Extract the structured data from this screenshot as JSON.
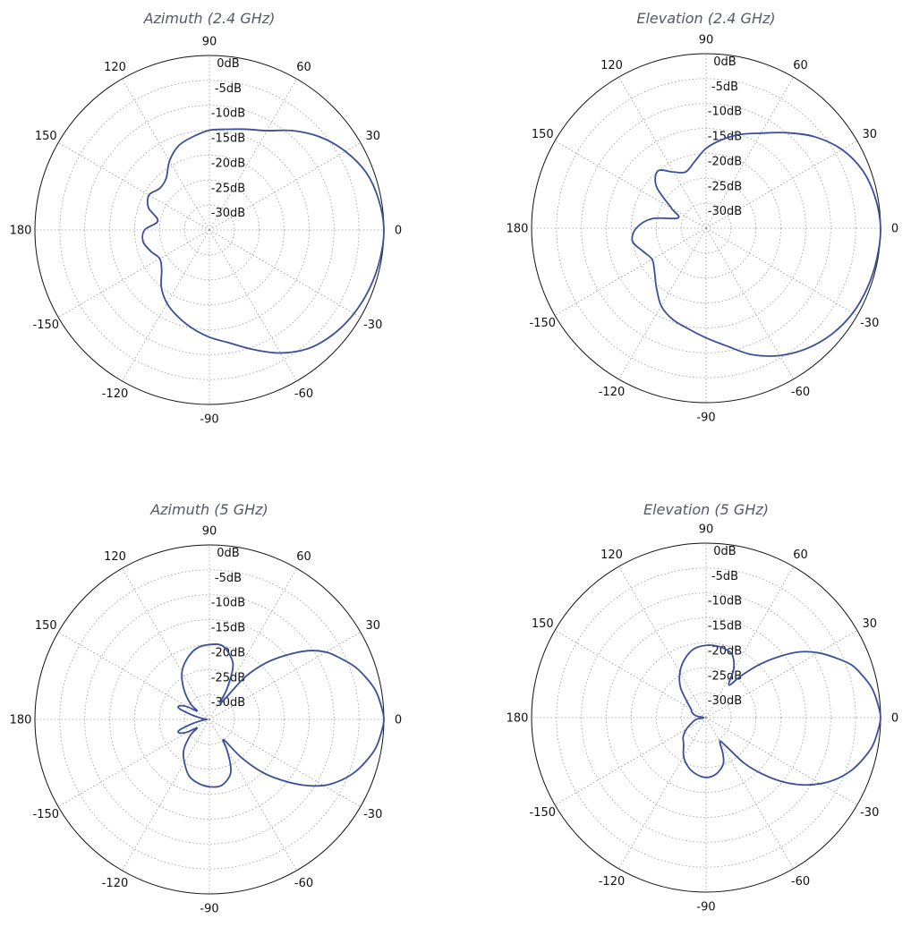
{
  "colors": {
    "trace": "#3a4e9a",
    "title": "#555a66"
  },
  "chart_data": [
    {
      "type": "polar-line",
      "title": "Azimuth (2.4 GHz)",
      "angle_ticks": [
        "0",
        "30",
        "60",
        "90",
        "120",
        "150",
        "180",
        "-150",
        "-120",
        "-90",
        "-60",
        "-30"
      ],
      "radial_ticks": [
        "0dB",
        "-5dB",
        "-10dB",
        "-15dB",
        "-20dB",
        "-25dB",
        "-30dB"
      ],
      "rlim": [
        -35,
        0
      ],
      "grid": true,
      "series": [
        {
          "values": [
            [
              0,
              0
            ],
            [
              10,
              -0.5
            ],
            [
              20,
              -1.5
            ],
            [
              30,
              -3.5
            ],
            [
              40,
              -6
            ],
            [
              50,
              -9
            ],
            [
              60,
              -12
            ],
            [
              70,
              -13.5
            ],
            [
              80,
              -14.5
            ],
            [
              90,
              -15
            ],
            [
              100,
              -16
            ],
            [
              110,
              -17
            ],
            [
              120,
              -19
            ],
            [
              130,
              -21.5
            ],
            [
              140,
              -22
            ],
            [
              150,
              -21
            ],
            [
              160,
              -22
            ],
            [
              170,
              -24.5
            ],
            [
              180,
              -22
            ],
            [
              -170,
              -21.5
            ],
            [
              -160,
              -22.5
            ],
            [
              -150,
              -23.5
            ],
            [
              -140,
              -22.5
            ],
            [
              -130,
              -20
            ],
            [
              -120,
              -18
            ],
            [
              -110,
              -16.5
            ],
            [
              -100,
              -15
            ],
            [
              -90,
              -13.5
            ],
            [
              -80,
              -12
            ],
            [
              -70,
              -9.5
            ],
            [
              -60,
              -6.5
            ],
            [
              -50,
              -4
            ],
            [
              -40,
              -2.5
            ],
            [
              -30,
              -1.5
            ],
            [
              -20,
              -0.8
            ],
            [
              -10,
              -0.3
            ],
            [
              0,
              0
            ]
          ]
        }
      ]
    },
    {
      "type": "polar-line",
      "title": "Elevation (2.4 GHz)",
      "angle_ticks": [
        "0",
        "30",
        "60",
        "90",
        "120",
        "150",
        "180",
        "-150",
        "-120",
        "-90",
        "-60",
        "-30"
      ],
      "radial_ticks": [
        "0dB",
        "-5dB",
        "-10dB",
        "-15dB",
        "-20dB",
        "-25dB",
        "-30dB"
      ],
      "rlim": [
        -35,
        0
      ],
      "grid": true,
      "series": [
        {
          "values": [
            [
              0,
              0
            ],
            [
              10,
              -0.5
            ],
            [
              20,
              -1.5
            ],
            [
              30,
              -3.5
            ],
            [
              40,
              -6.5
            ],
            [
              50,
              -10
            ],
            [
              60,
              -13
            ],
            [
              70,
              -15
            ],
            [
              80,
              -17
            ],
            [
              90,
              -19
            ],
            [
              100,
              -21.5
            ],
            [
              110,
              -23
            ],
            [
              120,
              -22
            ],
            [
              130,
              -20
            ],
            [
              140,
              -22
            ],
            [
              150,
              -27
            ],
            [
              160,
              -29
            ],
            [
              170,
              -24
            ],
            [
              180,
              -21
            ],
            [
              -170,
              -20
            ],
            [
              -160,
              -21.5
            ],
            [
              -150,
              -22.5
            ],
            [
              -140,
              -21.5
            ],
            [
              -130,
              -19.5
            ],
            [
              -120,
              -17
            ],
            [
              -110,
              -15.5
            ],
            [
              -100,
              -14.5
            ],
            [
              -90,
              -13
            ],
            [
              -80,
              -11
            ],
            [
              -70,
              -8
            ],
            [
              -60,
              -5.5
            ],
            [
              -50,
              -3.5
            ],
            [
              -40,
              -2
            ],
            [
              -30,
              -1
            ],
            [
              -20,
              -0.5
            ],
            [
              -10,
              -0.2
            ],
            [
              0,
              0
            ]
          ]
        }
      ]
    },
    {
      "type": "polar-line",
      "title": "Azimuth (5 GHz)",
      "angle_ticks": [
        "0",
        "30",
        "60",
        "90",
        "120",
        "150",
        "180",
        "-150",
        "-120",
        "-90",
        "-60",
        "-30"
      ],
      "radial_ticks": [
        "0dB",
        "-5dB",
        "-10dB",
        "-15dB",
        "-20dB",
        "-25dB",
        "-30dB"
      ],
      "rlim": [
        -35,
        0
      ],
      "grid": true,
      "series": [
        {
          "values": [
            [
              0,
              0
            ],
            [
              5,
              -0.5
            ],
            [
              10,
              -1.2
            ],
            [
              15,
              -2.5
            ],
            [
              20,
              -4
            ],
            [
              25,
              -6
            ],
            [
              30,
              -8
            ],
            [
              35,
              -11
            ],
            [
              40,
              -15
            ],
            [
              45,
              -19
            ],
            [
              50,
              -24
            ],
            [
              55,
              -31
            ],
            [
              60,
              -28
            ],
            [
              65,
              -24
            ],
            [
              70,
              -22
            ],
            [
              80,
              -20
            ],
            [
              90,
              -20
            ],
            [
              100,
              -20.5
            ],
            [
              110,
              -22
            ],
            [
              120,
              -24
            ],
            [
              130,
              -27
            ],
            [
              140,
              -30
            ],
            [
              145,
              -32
            ],
            [
              150,
              -30
            ],
            [
              155,
              -28.5
            ],
            [
              160,
              -28.5
            ],
            [
              165,
              -31
            ],
            [
              170,
              -33
            ],
            [
              175,
              -34
            ],
            [
              180,
              -34.5
            ],
            [
              -175,
              -34
            ],
            [
              -170,
              -33
            ],
            [
              -165,
              -31
            ],
            [
              -160,
              -28.5
            ],
            [
              -155,
              -28.5
            ],
            [
              -150,
              -30
            ],
            [
              -145,
              -32
            ],
            [
              -140,
              -30
            ],
            [
              -130,
              -27
            ],
            [
              -120,
              -25
            ],
            [
              -110,
              -23
            ],
            [
              -100,
              -22
            ],
            [
              -90,
              -21.5
            ],
            [
              -80,
              -21.5
            ],
            [
              -70,
              -23
            ],
            [
              -65,
              -25
            ],
            [
              -60,
              -28
            ],
            [
              -55,
              -30
            ],
            [
              -50,
              -25
            ],
            [
              -45,
              -20
            ],
            [
              -40,
              -16
            ],
            [
              -35,
              -12
            ],
            [
              -30,
              -8.5
            ],
            [
              -25,
              -6
            ],
            [
              -20,
              -4
            ],
            [
              -15,
              -2.5
            ],
            [
              -10,
              -1.2
            ],
            [
              -5,
              -0.5
            ],
            [
              0,
              0
            ]
          ]
        }
      ]
    },
    {
      "type": "polar-line",
      "title": "Elevation (5 GHz)",
      "angle_ticks": [
        "0",
        "30",
        "60",
        "90",
        "120",
        "150",
        "180",
        "-150",
        "-120",
        "-90",
        "-60",
        "-30"
      ],
      "radial_ticks": [
        "0dB",
        "-5dB",
        "-10dB",
        "-15dB",
        "-20dB",
        "-25dB",
        "-30dB"
      ],
      "rlim": [
        -35,
        0
      ],
      "grid": true,
      "series": [
        {
          "values": [
            [
              0,
              0
            ],
            [
              5,
              -0.5
            ],
            [
              10,
              -1.2
            ],
            [
              15,
              -2.5
            ],
            [
              20,
              -4
            ],
            [
              25,
              -6.5
            ],
            [
              30,
              -9
            ],
            [
              35,
              -12
            ],
            [
              40,
              -16
            ],
            [
              45,
              -20
            ],
            [
              50,
              -24
            ],
            [
              55,
              -27
            ],
            [
              60,
              -24
            ],
            [
              65,
              -22
            ],
            [
              70,
              -21
            ],
            [
              80,
              -20.5
            ],
            [
              90,
              -20.5
            ],
            [
              100,
              -21
            ],
            [
              110,
              -22.5
            ],
            [
              120,
              -24.5
            ],
            [
              130,
              -27
            ],
            [
              140,
              -30
            ],
            [
              150,
              -31.5
            ],
            [
              160,
              -32
            ],
            [
              170,
              -33
            ],
            [
              180,
              -34.5
            ],
            [
              -170,
              -33
            ],
            [
              -160,
              -32
            ],
            [
              -150,
              -30.5
            ],
            [
              -140,
              -29
            ],
            [
              -130,
              -28
            ],
            [
              -120,
              -26
            ],
            [
              -110,
              -24.5
            ],
            [
              -100,
              -23.5
            ],
            [
              -90,
              -23
            ],
            [
              -80,
              -23.5
            ],
            [
              -70,
              -25
            ],
            [
              -65,
              -27
            ],
            [
              -60,
              -29.5
            ],
            [
              -55,
              -28
            ],
            [
              -50,
              -23
            ],
            [
              -45,
              -19
            ],
            [
              -40,
              -15
            ],
            [
              -35,
              -11.5
            ],
            [
              -30,
              -8.5
            ],
            [
              -25,
              -6
            ],
            [
              -20,
              -4
            ],
            [
              -15,
              -2.5
            ],
            [
              -10,
              -1.2
            ],
            [
              -5,
              -0.5
            ],
            [
              0,
              0
            ]
          ]
        }
      ]
    }
  ]
}
